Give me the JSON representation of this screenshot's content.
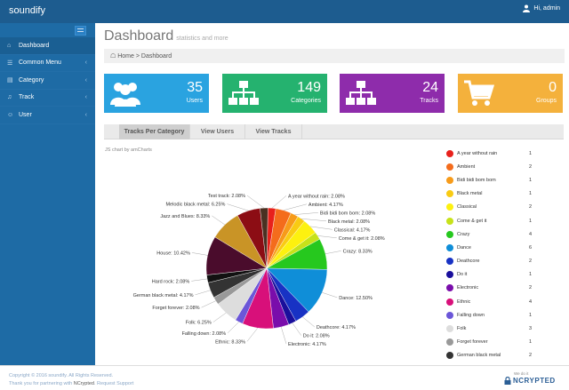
{
  "app": {
    "brand": "soundify",
    "user_greeting": "Hi, admin"
  },
  "sidebar": {
    "items": [
      {
        "label": "Dashboard",
        "icon": "home-icon",
        "active": true,
        "chevron": false
      },
      {
        "label": "Common Menu",
        "icon": "list-icon",
        "active": false,
        "chevron": true
      },
      {
        "label": "Category",
        "icon": "folder-icon",
        "active": false,
        "chevron": true
      },
      {
        "label": "Track",
        "icon": "music-icon",
        "active": false,
        "chevron": true
      },
      {
        "label": "User",
        "icon": "user-icon",
        "active": false,
        "chevron": true
      }
    ]
  },
  "header": {
    "title": "Dashboard",
    "subtitle": "statistics and more"
  },
  "breadcrumb": {
    "home": "Home",
    "current": "Dashboard"
  },
  "stats": [
    {
      "value": "35",
      "label": "Users",
      "color": "#2aa3e0",
      "icon": "users-icon"
    },
    {
      "value": "149",
      "label": "Categories",
      "color": "#25b26f",
      "icon": "sitemap-icon"
    },
    {
      "value": "24",
      "label": "Tracks",
      "color": "#8e2cab",
      "icon": "sitemap-icon"
    },
    {
      "value": "0",
      "label": "Groups",
      "color": "#f4b13c",
      "icon": "cart-icon"
    }
  ],
  "tabs": [
    "Tracks Per Category",
    "View Users",
    "View Tracks"
  ],
  "chart_credit": "JS chart by amCharts",
  "chart_data": {
    "type": "pie",
    "slices": [
      {
        "name": "A year without rain",
        "value": 1,
        "percent": "2.08%",
        "color": "#e8211c"
      },
      {
        "name": "Ambient",
        "value": 2,
        "percent": "4.17%",
        "color": "#f46c1c"
      },
      {
        "name": "Bidi bidi bom bom",
        "value": 1,
        "percent": "2.08%",
        "color": "#f79b1a"
      },
      {
        "name": "Black metal",
        "value": 1,
        "percent": "2.08%",
        "color": "#f9cb13"
      },
      {
        "name": "Classical",
        "value": 2,
        "percent": "4.17%",
        "color": "#fdf10f"
      },
      {
        "name": "Come & get it",
        "value": 1,
        "percent": "2.08%",
        "color": "#c7e21a"
      },
      {
        "name": "Crazy",
        "value": 4,
        "percent": "8.33%",
        "color": "#26c81e"
      },
      {
        "name": "Dance",
        "value": 6,
        "percent": "12.50%",
        "color": "#0f8ed8"
      },
      {
        "name": "Deathcore",
        "value": 2,
        "percent": "4.17%",
        "color": "#1832c4"
      },
      {
        "name": "Do it",
        "value": 1,
        "percent": "2.08%",
        "color": "#1a0f9c"
      },
      {
        "name": "Electronic",
        "value": 2,
        "percent": "4.17%",
        "color": "#7a0dab"
      },
      {
        "name": "Ethnic",
        "value": 4,
        "percent": "8.33%",
        "color": "#d8107a"
      },
      {
        "name": "Falling down",
        "value": 1,
        "percent": "2.08%",
        "color": "#6b56d8"
      },
      {
        "name": "Folk",
        "value": 3,
        "percent": "6.25%",
        "color": "#dddddd"
      },
      {
        "name": "Forget forever",
        "value": 1,
        "percent": "2.08%",
        "color": "#999999"
      },
      {
        "name": "German black metal",
        "value": 2,
        "percent": "4.17%",
        "color": "#333333"
      },
      {
        "name": "Hard rock",
        "value": 1,
        "percent": "2.08%",
        "color": "#111111"
      },
      {
        "name": "House",
        "value": 5,
        "percent": "10.42%",
        "color": "#4a0c2c"
      },
      {
        "name": "Jazz and Blues",
        "value": 4,
        "percent": "8.33%",
        "color": "#c99426"
      },
      {
        "name": "Melodic black metal",
        "value": 3,
        "percent": "6.25%",
        "color": "#8c0d14"
      },
      {
        "name": "Test track",
        "value": 1,
        "percent": "2.08%",
        "color": "#4a3122"
      }
    ],
    "legend_visible_count": 17,
    "legend_position": "right"
  },
  "footer": {
    "copyright": "Copyright © 2016 soundify. All Rights Reserved.",
    "thanks_prefix": "Thank you for partnering with ",
    "thanks_link": "NCrypted",
    "thanks_suffix": ". Request Support",
    "badge_top": "We do it",
    "badge_brand": "NCRYPTED"
  }
}
